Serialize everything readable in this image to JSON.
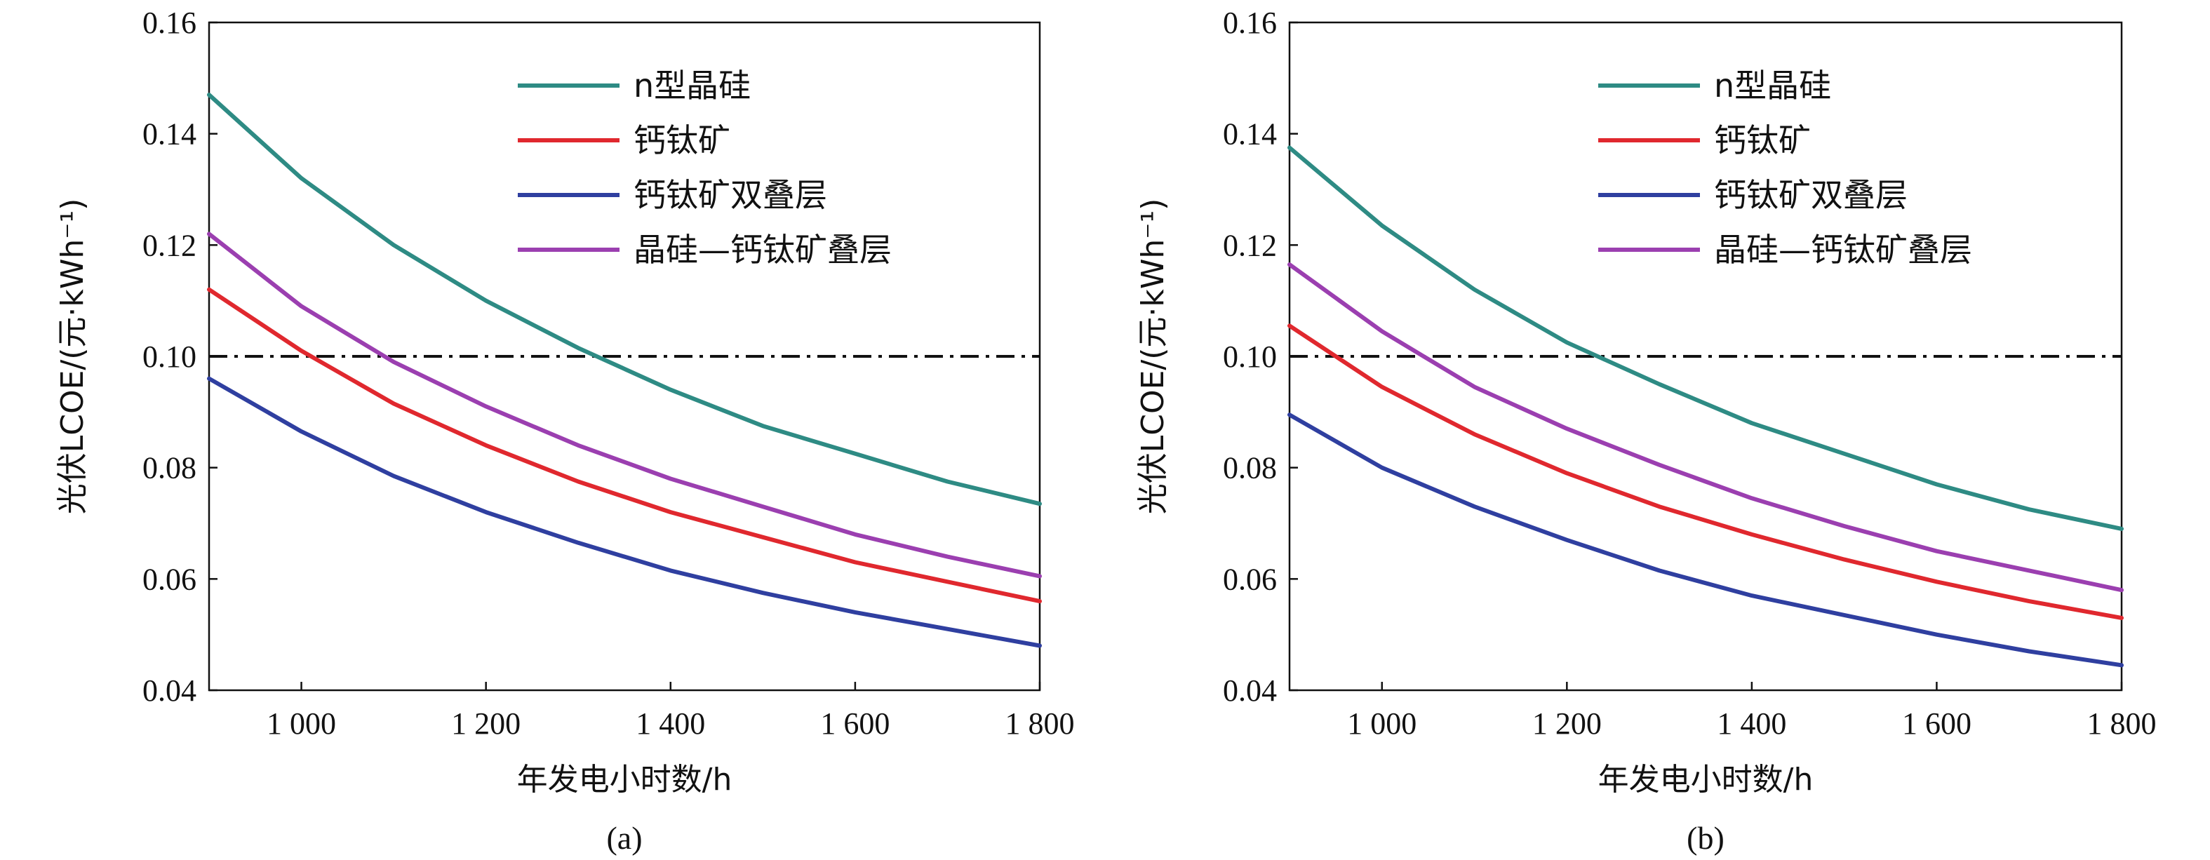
{
  "chart_data": [
    {
      "type": "line",
      "caption": "(a)",
      "xlabel": "年发电小时数/h",
      "ylabel": "光伏LCOE/(元·kWh⁻¹)",
      "xlim": [
        900,
        1800
      ],
      "ylim": [
        0.04,
        0.16
      ],
      "x_ticks": [
        1000,
        1200,
        1400,
        1600,
        1800
      ],
      "x_tick_labels": [
        "1 000",
        "1 200",
        "1 400",
        "1 600",
        "1 800"
      ],
      "y_ticks": [
        0.04,
        0.06,
        0.08,
        0.1,
        0.12,
        0.14,
        0.16
      ],
      "y_tick_labels": [
        "0.04",
        "0.06",
        "0.08",
        "0.10",
        "0.12",
        "0.14",
        "0.16"
      ],
      "legend_position": "top-right",
      "grid": false,
      "reference_line": {
        "y": 0.1,
        "style": "dash-dot",
        "color": "#111111"
      },
      "x": [
        900,
        1000,
        1100,
        1200,
        1300,
        1400,
        1500,
        1600,
        1700,
        1800
      ],
      "series": [
        {
          "name": "n型晶硅",
          "color": "#2E8B84",
          "values": [
            0.147,
            0.132,
            0.12,
            0.11,
            0.1015,
            0.094,
            0.0875,
            0.0825,
            0.0775,
            0.0735
          ]
        },
        {
          "name": "钙钛矿",
          "color": "#E0282E",
          "values": [
            0.112,
            0.101,
            0.0915,
            0.084,
            0.0775,
            0.072,
            0.0675,
            0.063,
            0.0595,
            0.056
          ]
        },
        {
          "name": "钙钛矿双叠层",
          "color": "#2F3FA0",
          "values": [
            0.096,
            0.0865,
            0.0785,
            0.072,
            0.0665,
            0.0615,
            0.0575,
            0.054,
            0.051,
            0.048
          ]
        },
        {
          "name": "晶硅—钙钛矿叠层",
          "color": "#9B3FB0",
          "values": [
            0.122,
            0.109,
            0.099,
            0.091,
            0.084,
            0.078,
            0.073,
            0.068,
            0.064,
            0.0605
          ]
        }
      ]
    },
    {
      "type": "line",
      "caption": "(b)",
      "xlabel": "年发电小时数/h",
      "ylabel": "光伏LCOE/(元·kWh⁻¹)",
      "xlim": [
        900,
        1800
      ],
      "ylim": [
        0.04,
        0.16
      ],
      "x_ticks": [
        1000,
        1200,
        1400,
        1600,
        1800
      ],
      "x_tick_labels": [
        "1 000",
        "1 200",
        "1 400",
        "1 600",
        "1 800"
      ],
      "y_ticks": [
        0.04,
        0.06,
        0.08,
        0.1,
        0.12,
        0.14,
        0.16
      ],
      "y_tick_labels": [
        "0.04",
        "0.06",
        "0.08",
        "0.10",
        "0.12",
        "0.14",
        "0.16"
      ],
      "legend_position": "top-right",
      "grid": false,
      "reference_line": {
        "y": 0.1,
        "style": "dash-dot",
        "color": "#111111"
      },
      "x": [
        900,
        1000,
        1100,
        1200,
        1300,
        1400,
        1500,
        1600,
        1700,
        1800
      ],
      "series": [
        {
          "name": "n型晶硅",
          "color": "#2E8B84",
          "values": [
            0.1375,
            0.1235,
            0.112,
            0.1025,
            0.095,
            0.088,
            0.0825,
            0.077,
            0.0725,
            0.069
          ]
        },
        {
          "name": "钙钛矿",
          "color": "#E0282E",
          "values": [
            0.1055,
            0.0945,
            0.086,
            0.079,
            0.073,
            0.068,
            0.0635,
            0.0595,
            0.056,
            0.053
          ]
        },
        {
          "name": "钙钛矿双叠层",
          "color": "#2F3FA0",
          "values": [
            0.0895,
            0.08,
            0.073,
            0.067,
            0.0615,
            0.057,
            0.0535,
            0.05,
            0.047,
            0.0445
          ]
        },
        {
          "name": "晶硅—钙钛矿叠层",
          "color": "#9B3FB0",
          "values": [
            0.1165,
            0.1045,
            0.0945,
            0.087,
            0.0805,
            0.0745,
            0.0695,
            0.065,
            0.0615,
            0.058
          ]
        }
      ]
    }
  ]
}
